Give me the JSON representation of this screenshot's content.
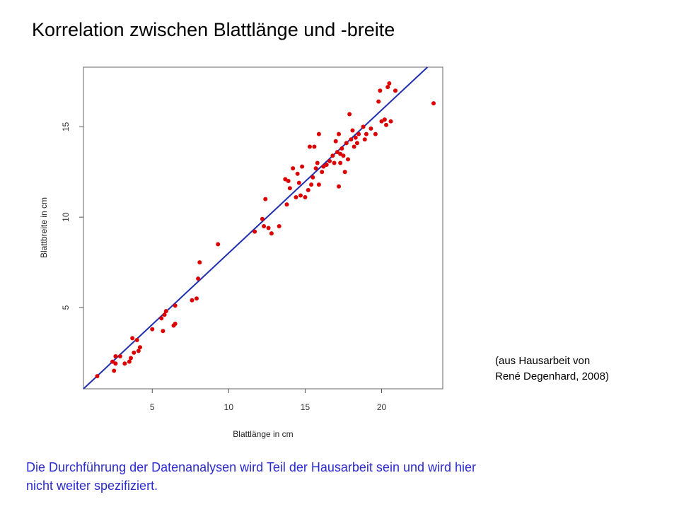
{
  "slide": {
    "title": "Korrelation zwischen Blattlänge und -breite",
    "citation_line1": "(aus Hausarbeit von",
    "citation_line2": "René Degenhard, 2008)",
    "footnote_line1": "Die Durchführung der Datenanalysen wird Teil der Hausarbeit sein und wird hier",
    "footnote_line2": "nicht weiter spezifiziert."
  },
  "chart_data": {
    "type": "scatter",
    "title": "",
    "xlabel": "Blattlänge in cm",
    "ylabel": "Blattbreite in cm",
    "xlim": [
      0.5,
      24
    ],
    "ylim": [
      0.5,
      18.3
    ],
    "xticks": [
      5,
      10,
      15,
      20
    ],
    "yticks": [
      5,
      10,
      15
    ],
    "grid": false,
    "point_color": "#dd0000",
    "line_color": "#1f2fb0",
    "regression_line": {
      "x": [
        0.5,
        23
      ],
      "y": [
        0.5,
        18.3
      ]
    },
    "points": [
      [
        1.4,
        1.2
      ],
      [
        2.4,
        2.0
      ],
      [
        2.5,
        1.5
      ],
      [
        2.6,
        2.3
      ],
      [
        2.6,
        1.9
      ],
      [
        2.9,
        2.3
      ],
      [
        3.2,
        1.9
      ],
      [
        3.5,
        2.0
      ],
      [
        3.6,
        2.2
      ],
      [
        3.7,
        3.3
      ],
      [
        3.8,
        2.5
      ],
      [
        4.0,
        3.2
      ],
      [
        4.1,
        2.6
      ],
      [
        4.2,
        2.8
      ],
      [
        5.0,
        3.8
      ],
      [
        5.6,
        4.4
      ],
      [
        5.7,
        3.7
      ],
      [
        5.8,
        4.6
      ],
      [
        5.9,
        4.8
      ],
      [
        6.4,
        4.0
      ],
      [
        6.5,
        4.1
      ],
      [
        6.5,
        5.1
      ],
      [
        7.6,
        5.4
      ],
      [
        7.9,
        5.5
      ],
      [
        8.0,
        6.6
      ],
      [
        8.1,
        7.5
      ],
      [
        9.3,
        8.5
      ],
      [
        11.7,
        9.2
      ],
      [
        12.2,
        9.9
      ],
      [
        12.3,
        9.5
      ],
      [
        12.4,
        11.0
      ],
      [
        12.6,
        9.4
      ],
      [
        12.8,
        9.1
      ],
      [
        13.3,
        9.5
      ],
      [
        13.7,
        12.1
      ],
      [
        13.8,
        10.7
      ],
      [
        13.9,
        12.0
      ],
      [
        14.0,
        11.6
      ],
      [
        14.2,
        12.7
      ],
      [
        14.4,
        11.1
      ],
      [
        14.5,
        12.4
      ],
      [
        14.6,
        11.9
      ],
      [
        14.7,
        11.2
      ],
      [
        14.8,
        12.8
      ],
      [
        15.0,
        11.1
      ],
      [
        15.2,
        11.5
      ],
      [
        15.3,
        13.9
      ],
      [
        15.4,
        11.8
      ],
      [
        15.5,
        12.2
      ],
      [
        15.6,
        13.9
      ],
      [
        15.7,
        12.7
      ],
      [
        15.8,
        13.0
      ],
      [
        15.9,
        14.6
      ],
      [
        15.9,
        11.8
      ],
      [
        16.1,
        12.5
      ],
      [
        16.2,
        12.8
      ],
      [
        16.4,
        12.9
      ],
      [
        16.6,
        13.1
      ],
      [
        16.8,
        13.4
      ],
      [
        16.9,
        13.0
      ],
      [
        17.0,
        14.2
      ],
      [
        17.1,
        13.6
      ],
      [
        17.2,
        14.6
      ],
      [
        17.2,
        11.7
      ],
      [
        17.3,
        13.5
      ],
      [
        17.3,
        13.0
      ],
      [
        17.4,
        13.8
      ],
      [
        17.5,
        13.4
      ],
      [
        17.6,
        12.5
      ],
      [
        17.7,
        14.1
      ],
      [
        17.8,
        13.2
      ],
      [
        17.9,
        15.7
      ],
      [
        18.0,
        14.3
      ],
      [
        18.1,
        14.8
      ],
      [
        18.2,
        13.9
      ],
      [
        18.3,
        14.4
      ],
      [
        18.4,
        14.1
      ],
      [
        18.5,
        14.6
      ],
      [
        18.8,
        15.0
      ],
      [
        18.9,
        14.3
      ],
      [
        19.0,
        14.6
      ],
      [
        19.3,
        14.9
      ],
      [
        19.6,
        14.6
      ],
      [
        19.8,
        16.4
      ],
      [
        19.9,
        17.0
      ],
      [
        20.0,
        15.3
      ],
      [
        20.2,
        15.4
      ],
      [
        20.3,
        15.1
      ],
      [
        20.4,
        17.2
      ],
      [
        20.5,
        17.4
      ],
      [
        20.6,
        15.3
      ],
      [
        20.9,
        17.0
      ],
      [
        23.4,
        16.3
      ]
    ]
  }
}
